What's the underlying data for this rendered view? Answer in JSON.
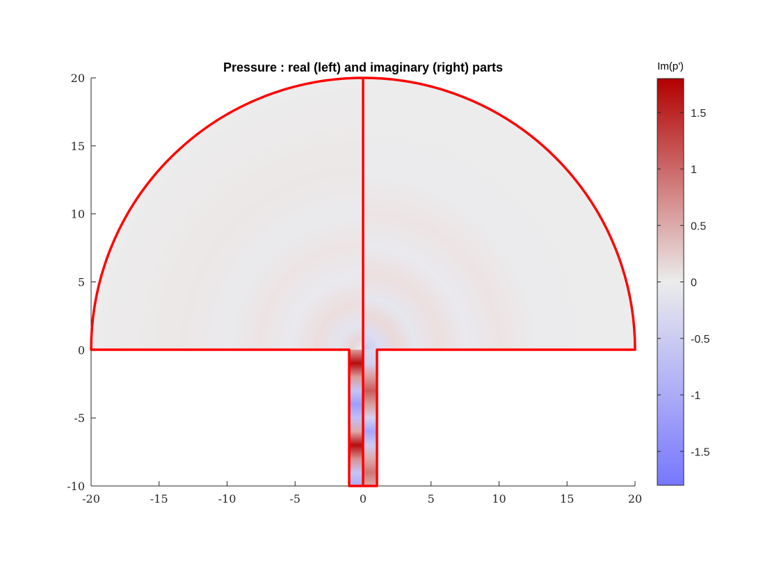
{
  "chart_data": {
    "type": "heatmap",
    "title": "Pressure : real (left) and imaginary (right) parts",
    "xlabel": "",
    "ylabel": "",
    "xlim": [
      -20,
      20
    ],
    "ylim": [
      -10,
      20
    ],
    "xticks": [
      "-20",
      "-15",
      "-10",
      "-5",
      "0",
      "5",
      "10",
      "15",
      "20"
    ],
    "xtick_values": [
      -20,
      -15,
      -10,
      -5,
      0,
      5,
      10,
      15,
      20
    ],
    "yticks": [
      "-10",
      "-5",
      "0",
      "5",
      "10",
      "15",
      "20"
    ],
    "ytick_values": [
      -10,
      -5,
      0,
      5,
      10,
      15,
      20
    ],
    "grid": false,
    "domain": {
      "half_disk_radius": 20,
      "duct_x_range": [
        -1,
        1
      ],
      "duct_y_range": [
        -10,
        0
      ],
      "outline_color": "#ff0000"
    },
    "duct_profile_real": {
      "y": [
        0,
        -1,
        -2,
        -3,
        -4,
        -5,
        -6,
        -7,
        -8,
        -9,
        -10
      ],
      "values": [
        0.6,
        1.7,
        0.6,
        -0.6,
        -1.2,
        -0.7,
        0.5,
        1.7,
        0.7,
        -0.6,
        -1.0
      ]
    },
    "duct_profile_imag": {
      "y": [
        0,
        -1,
        -2,
        -3,
        -4,
        -5,
        -6,
        -7,
        -8,
        -9,
        -10
      ],
      "values": [
        -0.3,
        -0.4,
        0.6,
        1.1,
        0.6,
        -0.4,
        -1.1,
        -0.5,
        0.5,
        0.9,
        0.5
      ]
    },
    "colorbar": {
      "title": "Im(p')",
      "range": [
        -1.8,
        1.8
      ],
      "ticks": [
        "-1.5",
        "-1",
        "-0.5",
        "0",
        "0.5",
        "1",
        "1.5"
      ],
      "tick_values": [
        -1.5,
        -1,
        -0.5,
        0,
        0.5,
        1,
        1.5
      ],
      "colormap": [
        "#7777ff",
        "#ececec",
        "#b20000"
      ]
    }
  }
}
